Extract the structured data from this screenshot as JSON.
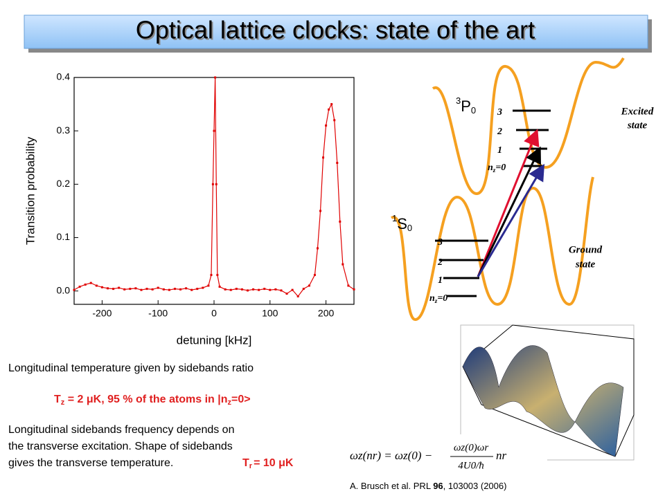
{
  "title": "Optical lattice clocks: state of the art",
  "chart_data": {
    "type": "line",
    "x_label": "detuning [kHz]",
    "y_label": "Transition probability",
    "color": "#e00000",
    "xlim": [
      -250,
      250
    ],
    "ylim": [
      -0.025,
      0.4
    ],
    "xticks": [
      -200,
      -100,
      0,
      100,
      200
    ],
    "yticks": [
      {
        "value": 0,
        "label": "0.0"
      },
      {
        "value": 0.1,
        "label": "0.1"
      },
      {
        "value": 0.2,
        "label": "0.2"
      },
      {
        "value": 0.3,
        "label": "0.3"
      },
      {
        "value": 0.4,
        "label": "0.4"
      }
    ],
    "x": [
      -250,
      -240,
      -230,
      -220,
      -210,
      -200,
      -190,
      -180,
      -170,
      -160,
      -150,
      -140,
      -130,
      -120,
      -110,
      -100,
      -90,
      -80,
      -70,
      -60,
      -50,
      -40,
      -30,
      -20,
      -10,
      -5,
      -2,
      0,
      2,
      4,
      6,
      10,
      20,
      30,
      40,
      50,
      60,
      70,
      80,
      90,
      100,
      110,
      120,
      130,
      140,
      150,
      160,
      170,
      180,
      185,
      190,
      195,
      200,
      205,
      210,
      215,
      220,
      225,
      230,
      240,
      250
    ],
    "values": [
      0.002,
      0.008,
      0.012,
      0.015,
      0.01,
      0.007,
      0.005,
      0.004,
      0.006,
      0.003,
      0.004,
      0.005,
      0.002,
      0.004,
      0.003,
      0.006,
      0.003,
      0.002,
      0.004,
      0.003,
      0.005,
      0.002,
      0.004,
      0.006,
      0.01,
      0.03,
      0.2,
      0.3,
      0.4,
      0.2,
      0.03,
      0.008,
      0.003,
      0.002,
      0.004,
      0.003,
      0.001,
      0.003,
      0.002,
      0.004,
      0.002,
      0.003,
      0.001,
      -0.005,
      0.002,
      -0.01,
      0.004,
      0.01,
      0.03,
      0.08,
      0.15,
      0.25,
      0.31,
      0.34,
      0.35,
      0.32,
      0.24,
      0.13,
      0.05,
      0.01,
      0.003
    ]
  },
  "diagram": {
    "excited_label": {
      "sup": "3",
      "main": "P",
      "sub": "0"
    },
    "ground_label": {
      "sup": "1",
      "main": "S",
      "sub": "0"
    },
    "levels": [
      "3",
      "2",
      "1"
    ],
    "nz": {
      "main": "n",
      "sub": "z",
      "rest": "=0"
    },
    "excited_state": [
      "Excited",
      "state"
    ],
    "ground_state": [
      "Ground",
      "state"
    ]
  },
  "text": {
    "line1": "Longitudinal temperature given by sidebands ratio",
    "tz": {
      "a": "T",
      "b": "z",
      "c": " = 2 μK, 95 % of the atoms in |n",
      "d": "z",
      "e": "=0>"
    },
    "para": [
      "Longitudinal sidebands frequency depends on",
      "the transverse excitation. Shape of sidebands",
      "gives the transverse temperature."
    ],
    "tr": {
      "main": "T",
      "sub": "r",
      "rest": "= 10 μK"
    }
  },
  "formula": {
    "left": "ωz(nr) = ωz(0) −",
    "num": "ωz(0)ωr",
    "den": "4U0/ħ",
    "right": "nr"
  },
  "citation": {
    "before": "A. Brusch et al. PRL ",
    "bold": "96",
    "after": ", 103003 (2006)"
  }
}
